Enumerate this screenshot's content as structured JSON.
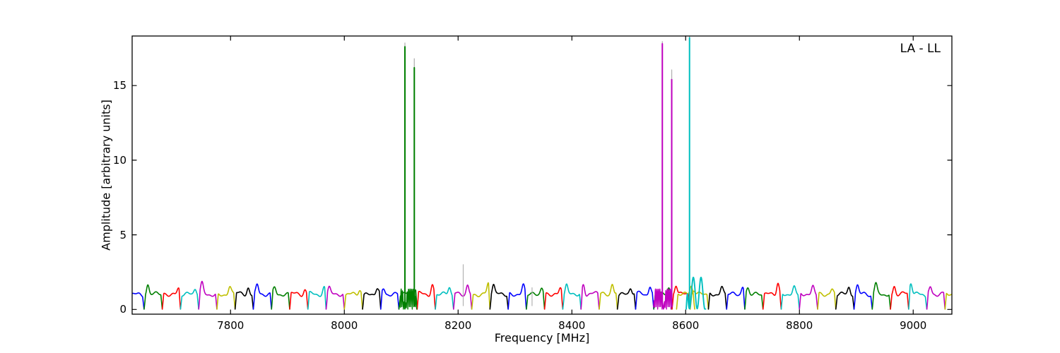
{
  "figure": {
    "background": "#ffffff"
  },
  "chart_data": {
    "type": "line",
    "title": "",
    "annotation": "LA - LL",
    "xlabel": "Frequency [MHz]",
    "ylabel": "Amplitude [arbitrary units]",
    "xlim": [
      7627,
      9068
    ],
    "ylim": [
      -0.32,
      18.32
    ],
    "xticks": [
      7800,
      8000,
      8200,
      8400,
      8600,
      8800,
      9000
    ],
    "yticks": [
      0,
      5,
      10,
      15
    ],
    "grid": false,
    "legend": "none",
    "band_width_mhz": 32,
    "band_start_mhz": 7616,
    "band_colors": [
      "b",
      "g",
      "r",
      "c",
      "m",
      "y",
      "k",
      "b",
      "g",
      "r",
      "c",
      "m",
      "y",
      "k",
      "b",
      "g",
      "r",
      "c",
      "m",
      "y",
      "k",
      "b",
      "g",
      "r",
      "c",
      "m",
      "y",
      "k",
      "b",
      "g",
      "r",
      "y",
      "k",
      "b",
      "g",
      "r",
      "c",
      "m",
      "y",
      "k",
      "b",
      "g",
      "r",
      "c",
      "m",
      "y"
    ],
    "band_baseline": {
      "plateau_amplitude": 1.1,
      "peak_amplitude": 1.6,
      "min_amplitude": 0.02
    },
    "colors": {
      "b": "#0000ff",
      "g": "#007f00",
      "r": "#ff0000",
      "c": "#00bfbf",
      "m": "#bf00bf",
      "y": "#bfbf00",
      "k": "#000000",
      "gray": "#b3b3b3",
      "axis": "#000000",
      "background": "#ffffff"
    },
    "overlays": [
      {
        "type": "dense-oscillation",
        "range": [
          8096,
          8128
        ],
        "center": 8106.5,
        "color": "g",
        "envelope_max": 1.35
      },
      {
        "type": "dense-oscillation",
        "range": [
          8543,
          8577
        ],
        "center": 8561.0,
        "color": "m",
        "envelope_max": 1.35
      },
      {
        "type": "band",
        "range": [
          8584,
          8616
        ],
        "color": "y"
      },
      {
        "type": "sine-wiggle",
        "range": [
          8601,
          8635
        ],
        "color": "c",
        "mean": 1.1,
        "amplitude": 1.05,
        "period_mhz": 13.5,
        "peak_at": 8627
      }
    ],
    "spikes": [
      {
        "freq": 8106.5,
        "amplitude": 17.6,
        "color": "g",
        "gray_cap_amplitude": 17.85
      },
      {
        "freq": 8123.0,
        "amplitude": 16.2,
        "color": "g",
        "gray_cap_amplitude": 16.8
      },
      {
        "freq": 8209.0,
        "amplitude": 3.0,
        "color": "gray"
      },
      {
        "freq": 8330.0,
        "amplitude": 1.45,
        "color": "gray"
      },
      {
        "freq": 8559.0,
        "amplitude": 17.8,
        "color": "m",
        "gray_cap_amplitude": 17.95
      },
      {
        "freq": 8575.5,
        "amplitude": 15.4,
        "color": "m",
        "gray_cap_amplitude": 16.05
      },
      {
        "freq": 8606.8,
        "amplitude": 18.2,
        "color": "c",
        "gray_cap_amplitude": 18.32,
        "clipped_at_top": true
      }
    ]
  }
}
